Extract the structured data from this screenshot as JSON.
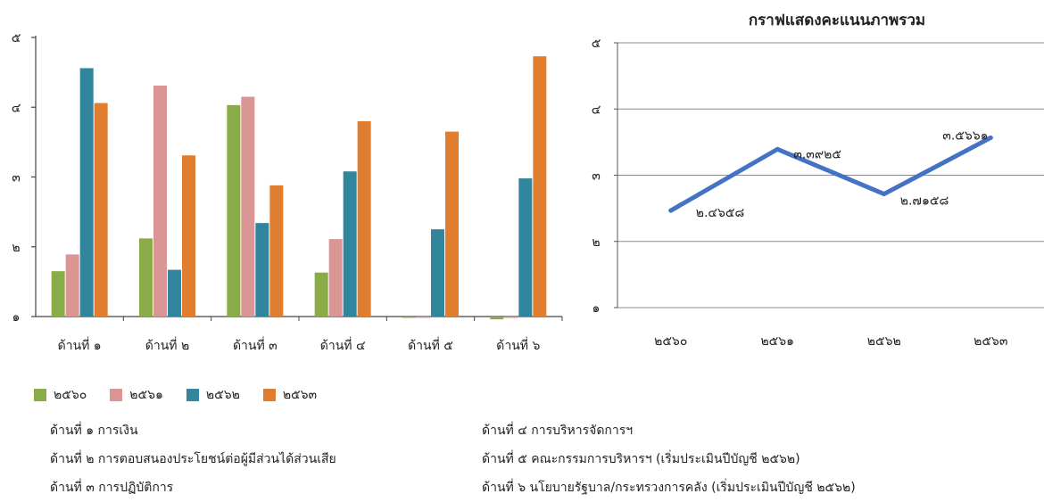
{
  "chart_data": [
    {
      "type": "bar",
      "categories": [
        "ด้านที่ ๑",
        "ด้านที่ ๒",
        "ด้านที่ ๓",
        "ด้านที่ ๔",
        "ด้านที่ ๕",
        "ด้านที่ ๖"
      ],
      "series": [
        {
          "name": "๒๕๖๐",
          "color": "#8aac48",
          "values": [
            1.65,
            2.12,
            4.03,
            1.63,
            1.0,
            0.96
          ]
        },
        {
          "name": "๒๕๖๑",
          "color": "#d99694",
          "values": [
            1.89,
            4.31,
            4.15,
            2.11,
            1.0,
            0.98
          ]
        },
        {
          "name": "๒๕๖๒",
          "color": "#31859c",
          "values": [
            4.56,
            1.67,
            2.34,
            3.08,
            2.25,
            2.98
          ]
        },
        {
          "name": "๒๕๖๓",
          "color": "#e07d2f",
          "values": [
            4.06,
            3.31,
            2.88,
            3.8,
            3.65,
            4.73
          ]
        }
      ],
      "yticks": [
        "๑",
        "๒",
        "๓",
        "๔",
        "๕"
      ],
      "ylim": [
        1,
        5
      ],
      "grid": false,
      "legend": "bottom"
    },
    {
      "type": "line",
      "title": "กราฟแสดงคะแนนภาพรวม",
      "x": [
        "๒๕๖๐",
        "๒๕๖๑",
        "๒๕๖๒",
        "๒๕๖๓"
      ],
      "series": [
        {
          "color": "#4472c4",
          "values": [
            2.4658,
            3.3925,
            2.7158,
            3.5661
          ]
        }
      ],
      "data_labels": [
        "๒.๔๖๕๘",
        "๓.๓๙๒๕",
        "๒.๗๑๕๘",
        "๓.๕๖๖๑"
      ],
      "yticks": [
        "๑",
        "๒",
        "๓",
        "๔",
        "๕"
      ],
      "ylim": [
        1,
        5
      ],
      "grid": true
    }
  ],
  "notes": {
    "left": [
      "ด้านที่ ๑ การเงิน",
      "ด้านที่ ๒ การตอบสนองประโยชน์ต่อผู้มีส่วนได้ส่วนเสีย",
      "ด้านที่ ๓ การปฏิบัติการ"
    ],
    "right": [
      "ด้านที่ ๔ การบริหารจัดการฯ",
      "ด้านที่ ๕ คณะกรรมการบริหารฯ (เริ่มประเมินปีบัญชี ๒๕๖๒)",
      "ด้านที่ ๖ นโยบายรัฐบาล/กระทรวงการคลัง (เริ่มประเมินปีบัญชี ๒๕๖๒)"
    ]
  }
}
